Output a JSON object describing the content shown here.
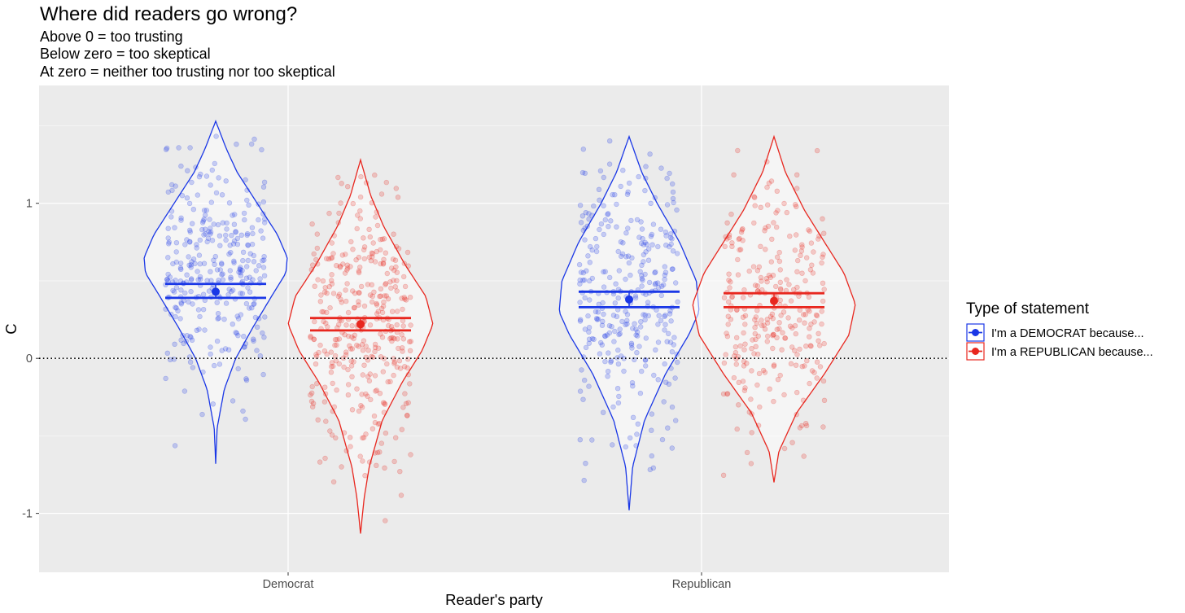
{
  "chart_data": {
    "type": "violin",
    "title": "Where did readers go wrong?",
    "subtitle": [
      "Above 0 = too trusting",
      "Below zero = too skeptical",
      "At zero = neither too trusting nor too skeptical"
    ],
    "xlabel": "Reader's party",
    "ylabel": "C",
    "categories": [
      "Democrat",
      "Republican"
    ],
    "y_ticks": [
      -1,
      0,
      1
    ],
    "y_tick_labels": [
      "-1",
      "0",
      "1"
    ],
    "ylim": [
      -1.38,
      1.76
    ],
    "grid": true,
    "reference_line": {
      "y": 0,
      "style": "dotted"
    },
    "legend": {
      "title": "Type of statement",
      "placement": "right"
    },
    "series": [
      {
        "name": "I'm a DEMOCRAT because...",
        "color": "#1a37e6",
        "points": [
          {
            "category": "Democrat",
            "mean": 0.43,
            "ci": [
              0.39,
              0.48
            ],
            "range": [
              -0.68,
              1.53
            ],
            "n_points": 320,
            "density": [
              [
                -0.68,
                0.0
              ],
              [
                -0.45,
                0.02
              ],
              [
                -0.2,
                0.12
              ],
              [
                0.0,
                0.28
              ],
              [
                0.2,
                0.52
              ],
              [
                0.4,
                0.78
              ],
              [
                0.55,
                0.98
              ],
              [
                0.65,
                1.0
              ],
              [
                0.8,
                0.86
              ],
              [
                1.0,
                0.58
              ],
              [
                1.2,
                0.3
              ],
              [
                1.35,
                0.15
              ],
              [
                1.53,
                0.0
              ]
            ]
          },
          {
            "category": "Republican",
            "mean": 0.38,
            "ci": [
              0.33,
              0.43
            ],
            "range": [
              -0.98,
              1.43
            ],
            "n_points": 320,
            "density": [
              [
                -0.98,
                0.0
              ],
              [
                -0.7,
                0.05
              ],
              [
                -0.4,
                0.22
              ],
              [
                -0.1,
                0.52
              ],
              [
                0.15,
                0.85
              ],
              [
                0.3,
                1.0
              ],
              [
                0.5,
                0.96
              ],
              [
                0.75,
                0.72
              ],
              [
                1.0,
                0.4
              ],
              [
                1.2,
                0.18
              ],
              [
                1.43,
                0.0
              ]
            ]
          }
        ]
      },
      {
        "name": "I'm a REPUBLICAN because...",
        "color": "#e8271f",
        "points": [
          {
            "category": "Democrat",
            "mean": 0.22,
            "ci": [
              0.18,
              0.26
            ],
            "range": [
              -1.13,
              1.28
            ],
            "n_points": 380,
            "density": [
              [
                -1.13,
                0.0
              ],
              [
                -0.9,
                0.05
              ],
              [
                -0.7,
                0.12
              ],
              [
                -0.4,
                0.3
              ],
              [
                -0.15,
                0.58
              ],
              [
                0.05,
                0.85
              ],
              [
                0.22,
                1.0
              ],
              [
                0.4,
                0.9
              ],
              [
                0.6,
                0.62
              ],
              [
                0.85,
                0.32
              ],
              [
                1.05,
                0.14
              ],
              [
                1.28,
                0.0
              ]
            ]
          },
          {
            "category": "Republican",
            "mean": 0.37,
            "ci": [
              0.33,
              0.42
            ],
            "range": [
              -0.8,
              1.43
            ],
            "n_points": 290,
            "density": [
              [
                -0.8,
                0.0
              ],
              [
                -0.6,
                0.06
              ],
              [
                -0.35,
                0.28
              ],
              [
                -0.1,
                0.62
              ],
              [
                0.15,
                0.92
              ],
              [
                0.35,
                1.0
              ],
              [
                0.55,
                0.86
              ],
              [
                0.75,
                0.62
              ],
              [
                0.95,
                0.38
              ],
              [
                1.2,
                0.14
              ],
              [
                1.43,
                0.0
              ]
            ]
          }
        ]
      }
    ]
  }
}
